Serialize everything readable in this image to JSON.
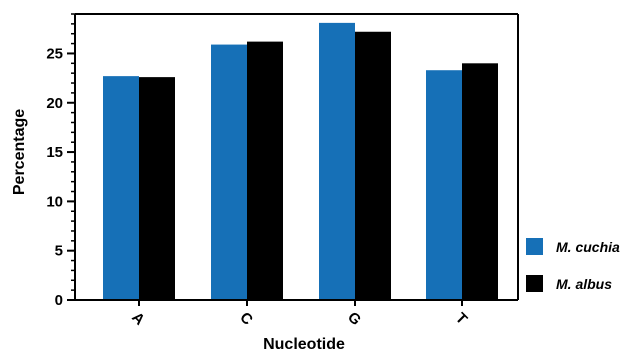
{
  "chart_data": {
    "type": "bar",
    "title": "",
    "xlabel": "Nucleotide",
    "ylabel": "Percentage",
    "categories": [
      "A",
      "C",
      "G",
      "T"
    ],
    "series": [
      {
        "name": "M. cuchia",
        "color": "#1670b7",
        "values": [
          22.7,
          25.9,
          28.1,
          23.3
        ]
      },
      {
        "name": "M. albus",
        "color": "#000000",
        "values": [
          22.6,
          26.2,
          27.2,
          24.0
        ]
      }
    ],
    "ylim": [
      0,
      29
    ],
    "yticks": [
      0,
      5,
      10,
      15,
      20,
      25
    ],
    "yminor_step": 1,
    "grid": false,
    "legend_position": "right-bottom"
  }
}
